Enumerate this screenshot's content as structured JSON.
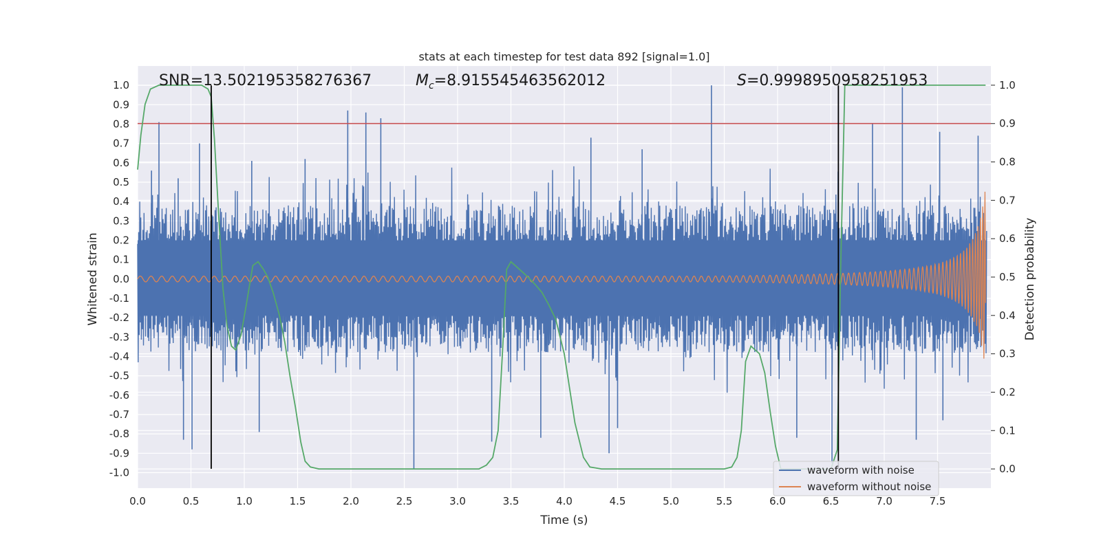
{
  "chart_data": {
    "type": "line",
    "title": "stats at each timestep for test data 892 [signal=1.0]",
    "xlabel": "Time (s)",
    "ylabel": "Whitened strain",
    "y2label": "Detection probability",
    "xlim": [
      0.0,
      8.0
    ],
    "ylim": [
      -1.08,
      1.1
    ],
    "y2lim": [
      -0.05,
      1.05
    ],
    "xticks": [
      "0.0",
      "0.5",
      "1.0",
      "1.5",
      "2.0",
      "2.5",
      "3.0",
      "3.5",
      "4.0",
      "4.5",
      "5.0",
      "5.5",
      "6.0",
      "6.5",
      "7.0",
      "7.5"
    ],
    "yticks": [
      "1.0",
      "0.9",
      "0.8",
      "0.7",
      "0.6",
      "0.5",
      "0.4",
      "0.3",
      "0.2",
      "0.1",
      "0.0",
      "-0.1",
      "-0.2",
      "-0.3",
      "-0.4",
      "-0.5",
      "-0.6",
      "-0.7",
      "-0.8",
      "-0.9",
      "-1.0"
    ],
    "y2ticks": [
      "1.0",
      "0.9",
      "0.8",
      "0.7",
      "0.6",
      "0.5",
      "0.4",
      "0.3",
      "0.2",
      "0.1",
      "0.0"
    ],
    "annotations": {
      "snr": "SNR=13.502195358276367",
      "mc_symbol": "M",
      "mc_sub": "c",
      "mc_value": "=8.915545463562012",
      "s_symbol": "S",
      "s_value": "=0.9998950958251953"
    },
    "threshold": {
      "y2": 0.9,
      "color": "#c44e52"
    },
    "vertical_lines": [
      {
        "x": 0.69,
        "y_from": -0.98,
        "y_to": 1.0
      },
      {
        "x": 6.57,
        "y_from": -0.98,
        "y_to": 1.0
      }
    ],
    "series": [
      {
        "name": "waveform with noise",
        "color": "#4c72b0",
        "axis": "left",
        "description": "whitened noisy strain, peaks roughly ±0.4 to ±0.9",
        "spikes": [
          {
            "x": 0.13,
            "y": 0.56
          },
          {
            "x": 0.2,
            "y": 0.81
          },
          {
            "x": 0.38,
            "y": 0.52
          },
          {
            "x": 0.58,
            "y": 0.7
          },
          {
            "x": 0.51,
            "y": -0.88
          },
          {
            "x": 0.43,
            "y": -0.83
          },
          {
            "x": 1.07,
            "y": 0.61
          },
          {
            "x": 1.14,
            "y": -0.79
          },
          {
            "x": 1.57,
            "y": 0.62
          },
          {
            "x": 1.97,
            "y": 0.87
          },
          {
            "x": 2.14,
            "y": 0.86
          },
          {
            "x": 2.28,
            "y": 0.83
          },
          {
            "x": 2.59,
            "y": -0.98
          },
          {
            "x": 3.32,
            "y": -0.84
          },
          {
            "x": 3.78,
            "y": -0.82
          },
          {
            "x": 4.25,
            "y": 0.73
          },
          {
            "x": 4.5,
            "y": -0.77
          },
          {
            "x": 4.73,
            "y": 0.67
          },
          {
            "x": 4.42,
            "y": -0.9
          },
          {
            "x": 5.38,
            "y": 1.0
          },
          {
            "x": 6.18,
            "y": -0.82
          },
          {
            "x": 6.51,
            "y": -0.95
          },
          {
            "x": 6.89,
            "y": 0.8
          },
          {
            "x": 7.17,
            "y": 0.99
          },
          {
            "x": 7.3,
            "y": -0.83
          },
          {
            "x": 7.52,
            "y": 0.76
          },
          {
            "x": 7.88,
            "y": 0.74
          },
          {
            "x": 7.55,
            "y": -0.73
          }
        ]
      },
      {
        "name": "waveform without noise",
        "color": "#dd8452",
        "axis": "left",
        "description": "chirp, amplitude ~0.015 at start growing to ~0.48 at t≈7.95 s",
        "amp_start": 0.015,
        "amp_end": 0.48,
        "t_end": 7.95
      },
      {
        "name": "detection probability",
        "color": "#55a868",
        "axis": "right",
        "x": [
          0.0,
          0.03,
          0.07,
          0.12,
          0.2,
          0.3,
          0.45,
          0.6,
          0.66,
          0.69,
          0.72,
          0.76,
          0.8,
          0.84,
          0.88,
          0.92,
          0.97,
          1.02,
          1.08,
          1.13,
          1.18,
          1.22,
          1.27,
          1.33,
          1.38,
          1.43,
          1.48,
          1.53,
          1.57,
          1.62,
          1.7,
          2.0,
          2.5,
          2.8,
          3.1,
          3.2,
          3.27,
          3.33,
          3.38,
          3.42,
          3.46,
          3.5,
          3.58,
          3.66,
          3.73,
          3.79,
          3.85,
          3.92,
          4.0,
          4.1,
          4.18,
          4.24,
          4.35,
          5.0,
          5.5,
          5.57,
          5.62,
          5.66,
          5.7,
          5.75,
          5.83,
          5.88,
          5.93,
          5.98,
          6.03,
          6.3,
          6.5,
          6.56,
          6.59,
          6.63,
          6.68,
          7.0,
          7.5,
          7.95
        ],
        "y": [
          0.78,
          0.87,
          0.95,
          0.99,
          1.0,
          1.0,
          1.0,
          1.0,
          0.99,
          0.97,
          0.86,
          0.66,
          0.47,
          0.37,
          0.32,
          0.31,
          0.35,
          0.43,
          0.53,
          0.54,
          0.52,
          0.5,
          0.46,
          0.4,
          0.33,
          0.24,
          0.16,
          0.07,
          0.02,
          0.005,
          0.0,
          0.0,
          0.0,
          0.0,
          0.0,
          0.0,
          0.01,
          0.03,
          0.1,
          0.3,
          0.52,
          0.54,
          0.52,
          0.5,
          0.48,
          0.46,
          0.43,
          0.39,
          0.3,
          0.12,
          0.03,
          0.005,
          0.0,
          0.0,
          0.0,
          0.005,
          0.03,
          0.1,
          0.28,
          0.32,
          0.3,
          0.25,
          0.15,
          0.06,
          0.0,
          0.0,
          0.0,
          0.05,
          0.5,
          1.0,
          1.0,
          1.0,
          1.0,
          1.0
        ]
      }
    ],
    "legend": {
      "position": "lower-right",
      "entries": [
        "waveform with noise",
        "waveform without noise"
      ]
    },
    "style": {
      "plot_bg": "#eaeaf2",
      "grid_color": "#ffffff",
      "text_color": "#262626"
    }
  }
}
